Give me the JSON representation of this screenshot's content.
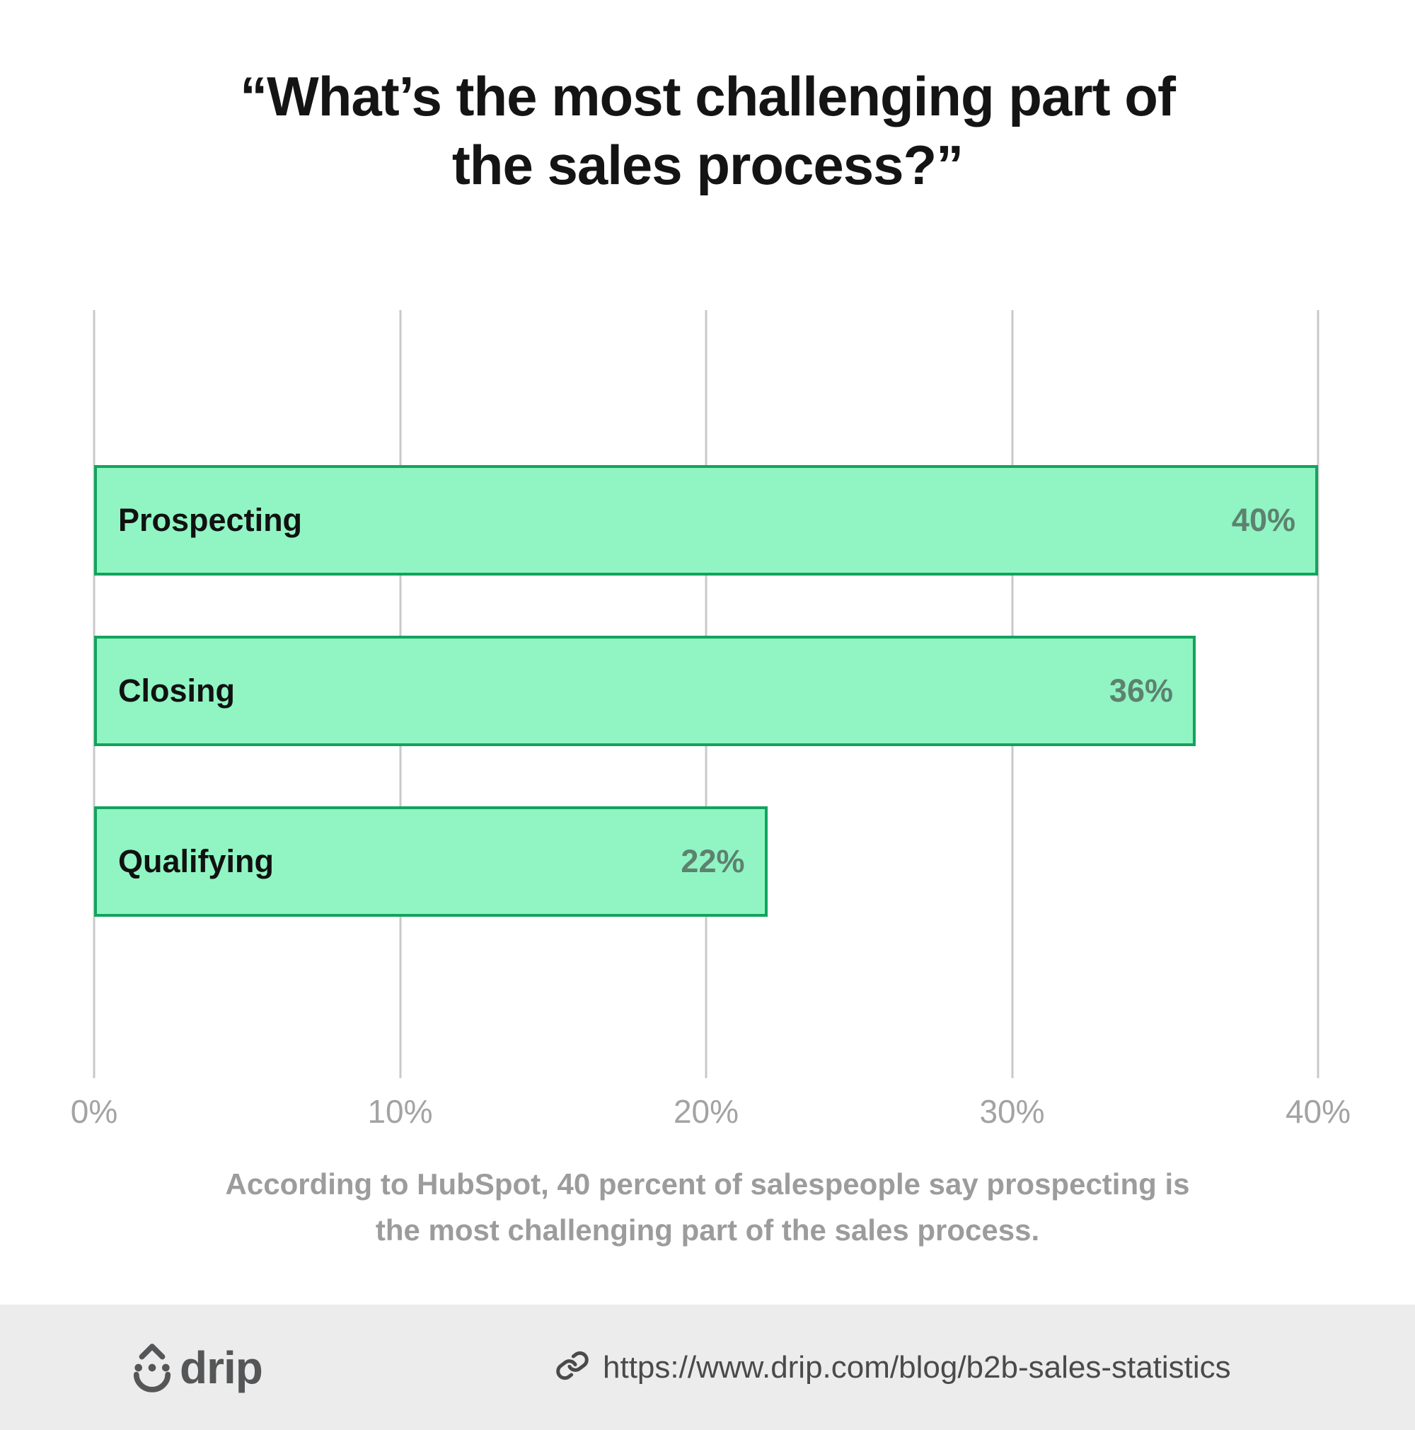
{
  "title": {
    "line1": "“What’s the most challenging part of",
    "line2": "the sales process?”"
  },
  "chart_data": {
    "type": "bar",
    "orientation": "horizontal",
    "categories": [
      "Prospecting",
      "Closing",
      "Qualifying"
    ],
    "values": [
      40,
      36,
      22
    ],
    "value_labels": [
      "40%",
      "36%",
      "22%"
    ],
    "xlim": [
      0,
      40
    ],
    "x_ticks": [
      "0%",
      "10%",
      "20%",
      "30%",
      "40%"
    ],
    "x_tick_values": [
      0,
      10,
      20,
      30,
      40
    ],
    "grid": "vertical",
    "legend": "none",
    "title": "“What’s the most challenging part of the sales process?”",
    "xlabel": "",
    "ylabel": ""
  },
  "caption": "According to HubSpot, 40 percent of salespeople say prospecting is the most challenging part of the sales process.",
  "footer": {
    "brand": "drip",
    "url": "https://www.drip.com/blog/b2b-sales-statistics"
  },
  "colors": {
    "bar_fill": "#90F5C3",
    "bar_border": "#13A35D",
    "grid": "#C9C9C9",
    "title_text": "#141414",
    "caption_text": "#9C9C9C",
    "axis_text": "#A3A3A3",
    "value_text": "#5E8170",
    "footer_bg": "#ECECEC",
    "footer_text": "#4A4A4A"
  },
  "icons": {
    "brand_icon": "drip-droplet-icon",
    "url_icon": "link-icon"
  }
}
